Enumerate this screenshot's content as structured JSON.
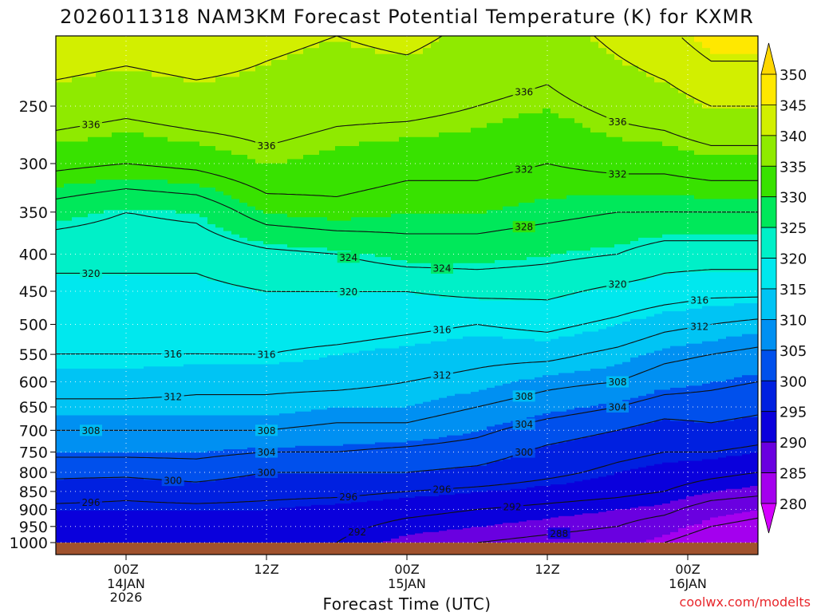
{
  "chart_data": {
    "type": "heatmap",
    "title": "2026011318 NAM3KM Forecast Potential Temperature (K) for KXMR",
    "xlabel": "Forecast Time (UTC)",
    "ylabel": "",
    "credit": "coolwx.com/modelts",
    "x_ticks": [
      {
        "label": "00Z",
        "sub": [
          "14JAN",
          "2026"
        ],
        "hour": 6
      },
      {
        "label": "12Z",
        "sub": [],
        "hour": 18
      },
      {
        "label": "00Z",
        "sub": [
          "15JAN"
        ],
        "hour": 30
      },
      {
        "label": "12Z",
        "sub": [],
        "hour": 42
      },
      {
        "label": "00Z",
        "sub": [
          "16JAN"
        ],
        "hour": 54
      }
    ],
    "xlim_hours": [
      0,
      60
    ],
    "y_ticks": [
      250,
      300,
      350,
      400,
      450,
      500,
      550,
      600,
      650,
      700,
      750,
      800,
      850,
      900,
      950,
      1000
    ],
    "ylim_hpa": [
      200,
      1000
    ],
    "colorbar": {
      "ticks": [
        350,
        345,
        340,
        335,
        330,
        325,
        320,
        315,
        310,
        305,
        300,
        295,
        290,
        285,
        280
      ],
      "bins": [
        {
          "lo": 345,
          "hi": 350,
          "color": "#ffe800"
        },
        {
          "lo": 340,
          "hi": 345,
          "color": "#d2ef00"
        },
        {
          "lo": 335,
          "hi": 340,
          "color": "#8fea00"
        },
        {
          "lo": 330,
          "hi": 335,
          "color": "#38e200"
        },
        {
          "lo": 325,
          "hi": 330,
          "color": "#00e85a"
        },
        {
          "lo": 320,
          "hi": 325,
          "color": "#00f0c8"
        },
        {
          "lo": 315,
          "hi": 320,
          "color": "#00e8ee"
        },
        {
          "lo": 310,
          "hi": 315,
          "color": "#00c4f4"
        },
        {
          "lo": 305,
          "hi": 310,
          "color": "#0090f2"
        },
        {
          "lo": 300,
          "hi": 305,
          "color": "#0050ec"
        },
        {
          "lo": 295,
          "hi": 300,
          "color": "#0020e0"
        },
        {
          "lo": 290,
          "hi": 295,
          "color": "#0a00dc"
        },
        {
          "lo": 285,
          "hi": 290,
          "color": "#6a00e0"
        },
        {
          "lo": 280,
          "hi": 285,
          "color": "#a400ee"
        }
      ],
      "under_color": "#d400ff",
      "over_color": "#ffd700"
    },
    "ground_color": "#a0522d",
    "contour_interval": 4,
    "contour_labels": [
      336,
      336,
      336,
      336,
      332,
      332,
      328,
      324,
      324,
      320,
      320,
      320,
      316,
      316,
      316,
      316,
      312,
      312,
      312,
      308,
      308,
      308,
      308,
      304,
      304,
      304,
      300,
      300,
      300,
      296,
      296,
      296,
      292,
      292,
      288
    ],
    "profiles": [
      {
        "hour": 0,
        "values": [
          [
            250,
            338
          ],
          [
            300,
            333
          ],
          [
            350,
            326
          ],
          [
            400,
            321
          ],
          [
            450,
            319
          ],
          [
            500,
            317
          ],
          [
            550,
            316
          ],
          [
            600,
            314
          ],
          [
            650,
            311
          ],
          [
            700,
            308
          ],
          [
            750,
            305
          ],
          [
            800,
            301
          ],
          [
            850,
            298
          ],
          [
            900,
            295
          ],
          [
            950,
            294
          ],
          [
            1000,
            293
          ]
        ]
      },
      {
        "hour": 6,
        "values": [
          [
            250,
            337
          ],
          [
            300,
            332
          ],
          [
            350,
            324
          ],
          [
            400,
            321
          ],
          [
            450,
            319
          ],
          [
            500,
            317
          ],
          [
            550,
            316
          ],
          [
            600,
            314
          ],
          [
            650,
            311
          ],
          [
            700,
            308
          ],
          [
            750,
            305
          ],
          [
            800,
            301
          ],
          [
            850,
            297
          ],
          [
            900,
            295
          ],
          [
            950,
            294
          ],
          [
            1000,
            293
          ]
        ]
      },
      {
        "hour": 12,
        "values": [
          [
            250,
            338
          ],
          [
            300,
            333
          ],
          [
            350,
            325
          ],
          [
            400,
            321
          ],
          [
            450,
            319
          ],
          [
            500,
            317
          ],
          [
            550,
            316
          ],
          [
            600,
            313
          ],
          [
            650,
            311
          ],
          [
            700,
            308
          ],
          [
            750,
            305
          ],
          [
            800,
            302
          ],
          [
            850,
            298
          ],
          [
            900,
            295
          ],
          [
            950,
            294
          ],
          [
            1000,
            293
          ]
        ]
      },
      {
        "hour": 18,
        "values": [
          [
            250,
            338
          ],
          [
            300,
            335
          ],
          [
            350,
            330
          ],
          [
            400,
            323
          ],
          [
            450,
            320
          ],
          [
            500,
            318
          ],
          [
            550,
            316
          ],
          [
            600,
            313
          ],
          [
            650,
            311
          ],
          [
            700,
            308
          ],
          [
            750,
            304
          ],
          [
            800,
            300
          ],
          [
            850,
            297
          ],
          [
            900,
            295
          ],
          [
            950,
            294
          ],
          [
            1000,
            293
          ]
        ]
      },
      {
        "hour": 24,
        "values": [
          [
            250,
            337
          ],
          [
            300,
            334
          ],
          [
            350,
            331
          ],
          [
            400,
            324
          ],
          [
            450,
            320
          ],
          [
            500,
            318
          ],
          [
            550,
            315
          ],
          [
            600,
            313
          ],
          [
            650,
            310
          ],
          [
            700,
            307
          ],
          [
            750,
            304
          ],
          [
            800,
            300
          ],
          [
            850,
            297
          ],
          [
            900,
            294
          ],
          [
            950,
            293
          ],
          [
            1000,
            292
          ]
        ]
      },
      {
        "hour": 30,
        "values": [
          [
            250,
            337
          ],
          [
            300,
            333
          ],
          [
            350,
            330
          ],
          [
            400,
            326
          ],
          [
            450,
            320
          ],
          [
            500,
            317
          ],
          [
            550,
            314
          ],
          [
            600,
            312
          ],
          [
            650,
            310
          ],
          [
            700,
            307
          ],
          [
            750,
            303
          ],
          [
            800,
            300
          ],
          [
            850,
            296
          ],
          [
            900,
            293
          ],
          [
            950,
            291
          ],
          [
            1000,
            289
          ]
        ]
      },
      {
        "hour": 36,
        "values": [
          [
            250,
            336
          ],
          [
            300,
            333
          ],
          [
            350,
            330
          ],
          [
            400,
            326
          ],
          [
            450,
            321
          ],
          [
            500,
            316
          ],
          [
            550,
            313
          ],
          [
            600,
            311
          ],
          [
            650,
            308
          ],
          [
            700,
            305
          ],
          [
            750,
            302
          ],
          [
            800,
            299
          ],
          [
            850,
            295
          ],
          [
            900,
            292
          ],
          [
            950,
            290
          ],
          [
            1000,
            288
          ]
        ]
      },
      {
        "hour": 42,
        "values": [
          [
            250,
            335
          ],
          [
            300,
            332
          ],
          [
            350,
            329
          ],
          [
            400,
            325
          ],
          [
            450,
            321
          ],
          [
            500,
            317
          ],
          [
            550,
            313
          ],
          [
            600,
            309
          ],
          [
            650,
            306
          ],
          [
            700,
            302
          ],
          [
            750,
            299
          ],
          [
            800,
            297
          ],
          [
            850,
            294
          ],
          [
            900,
            291
          ],
          [
            950,
            289
          ],
          [
            1000,
            287
          ]
        ]
      },
      {
        "hour": 48,
        "values": [
          [
            250,
            337
          ],
          [
            300,
            333
          ],
          [
            350,
            328
          ],
          [
            400,
            324
          ],
          [
            450,
            319
          ],
          [
            500,
            315
          ],
          [
            550,
            311
          ],
          [
            600,
            308
          ],
          [
            650,
            304
          ],
          [
            700,
            300
          ],
          [
            750,
            297
          ],
          [
            800,
            295
          ],
          [
            850,
            293
          ],
          [
            900,
            290
          ],
          [
            950,
            288
          ],
          [
            1000,
            286
          ]
        ]
      },
      {
        "hour": 52,
        "values": [
          [
            250,
            338
          ],
          [
            300,
            333
          ],
          [
            350,
            328
          ],
          [
            400,
            322
          ],
          [
            450,
            318
          ],
          [
            500,
            313
          ],
          [
            550,
            309
          ],
          [
            600,
            306
          ],
          [
            650,
            302
          ],
          [
            700,
            298
          ],
          [
            750,
            296
          ],
          [
            800,
            294
          ],
          [
            850,
            292
          ],
          [
            900,
            289
          ],
          [
            950,
            286
          ],
          [
            1000,
            284
          ]
        ]
      },
      {
        "hour": 56,
        "values": [
          [
            250,
            340
          ],
          [
            300,
            334
          ],
          [
            350,
            328
          ],
          [
            400,
            322
          ],
          [
            450,
            317
          ],
          [
            500,
            312
          ],
          [
            550,
            308
          ],
          [
            600,
            305
          ],
          [
            650,
            302
          ],
          [
            700,
            299
          ],
          [
            750,
            296
          ],
          [
            800,
            293
          ],
          [
            850,
            290
          ],
          [
            900,
            286
          ],
          [
            950,
            284
          ],
          [
            1000,
            282
          ]
        ]
      },
      {
        "hour": 60,
        "values": [
          [
            250,
            340
          ],
          [
            300,
            334
          ],
          [
            350,
            328
          ],
          [
            400,
            322
          ],
          [
            450,
            317
          ],
          [
            500,
            311
          ],
          [
            550,
            307
          ],
          [
            600,
            304
          ],
          [
            650,
            301
          ],
          [
            700,
            298
          ],
          [
            750,
            295
          ],
          [
            800,
            292
          ],
          [
            850,
            289
          ],
          [
            900,
            285
          ],
          [
            950,
            283
          ],
          [
            1000,
            281
          ]
        ]
      }
    ]
  }
}
